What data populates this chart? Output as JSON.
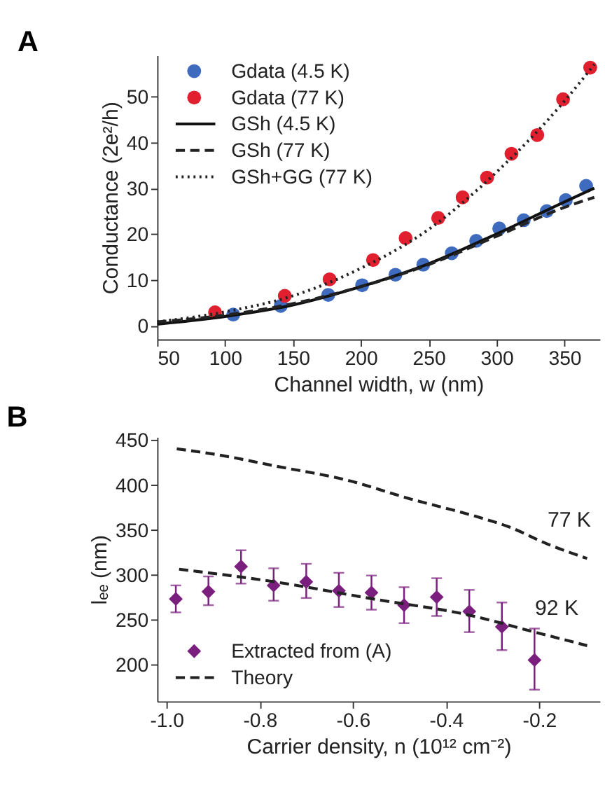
{
  "chart_data": [
    {
      "type": "line",
      "title": "A",
      "xlabel": "Channel width, w (nm)",
      "ylabel": "Conductance (2e²/h)",
      "xlim": [
        50,
        376
      ],
      "ylim": [
        -3,
        59
      ],
      "xticks": [
        50,
        100,
        150,
        200,
        250,
        300,
        350
      ],
      "yticks": [
        0,
        10,
        20,
        30,
        40,
        50
      ],
      "legend": "top left",
      "grid": false,
      "series": [
        {
          "name": "Gdata (4.5 K)",
          "type": "scatter",
          "marker": "circle",
          "color": "#3f6bbf",
          "x": [
            106,
            141,
            176,
            201,
            225.5,
            246,
            267,
            285,
            302,
            320,
            337,
            351,
            366
          ],
          "values": [
            2.4,
            4.3,
            6.7,
            8.8,
            11.1,
            13.3,
            15.8,
            18.5,
            21.2,
            23.0,
            25.0,
            27.4,
            30.5
          ]
        },
        {
          "name": "Gdata (77 K)",
          "type": "scatter",
          "marker": "circle",
          "color": "#e0202f",
          "x": [
            92.6,
            144,
            177,
            209,
            233,
            257,
            275,
            293,
            311,
            330,
            349,
            369
          ],
          "values": [
            2.9,
            6.5,
            10.1,
            14.3,
            19.1,
            23.5,
            28.0,
            32.3,
            37.5,
            41.6,
            49.4,
            56.3
          ]
        },
        {
          "name": "GSh (4.5 K)",
          "line_style": "solid",
          "color": "#111111",
          "x": [
            50,
            100,
            150,
            200,
            250,
            300,
            350,
            372
          ],
          "values": [
            0.3,
            2.0,
            4.5,
            8.5,
            13.5,
            20.0,
            27.0,
            30.0
          ]
        },
        {
          "name": "GSh (77 K)",
          "line_style": "dashed",
          "color": "#222222",
          "x": [
            50,
            100,
            150,
            200,
            250,
            300,
            350,
            372
          ],
          "values": [
            0.8,
            2.3,
            4.8,
            8.5,
            13.3,
            19.5,
            25.8,
            28.0
          ]
        },
        {
          "name": "GSh+GG (77 K)",
          "line_style": "dotted",
          "color": "#222222",
          "x": [
            50,
            100,
            150,
            200,
            250,
            300,
            350,
            372
          ],
          "values": [
            0.8,
            3.0,
            6.5,
            12.5,
            21.0,
            33.5,
            49.0,
            57.0
          ]
        }
      ]
    },
    {
      "type": "line",
      "title": "B",
      "xlabel": "Carrier density, n (10¹² cm⁻²)",
      "ylabel": "lₑₑ (nm)",
      "xlim": [
        -1.02,
        -0.07
      ],
      "ylim": [
        159,
        453
      ],
      "xticks": [
        {
          "value": -1.0,
          "label": "-1.0"
        },
        -0.8,
        -0.6,
        -0.4,
        -0.2
      ],
      "yticks": [
        200,
        250,
        300,
        350,
        400,
        450
      ],
      "legend": "bottom left",
      "grid": false,
      "series": [
        {
          "name": "Extracted from (A)",
          "type": "scatter",
          "marker": "diamond",
          "color": "#7b1f7f",
          "x": [
            -0.98,
            -0.91,
            -0.84,
            -0.77,
            -0.7,
            -0.63,
            -0.56,
            -0.49,
            -0.42,
            -0.35,
            -0.28,
            -0.21
          ],
          "values": [
            273,
            281,
            309,
            288,
            292,
            282,
            280,
            266,
            275,
            259,
            242,
            205
          ],
          "errors": [
            [
              258,
              288
            ],
            [
              266,
              298
            ],
            [
              290,
              327
            ],
            [
              271,
              307
            ],
            [
              274,
              312
            ],
            [
              264,
              302
            ],
            [
              261,
              299
            ],
            [
              246,
              286
            ],
            [
              254,
              296
            ],
            [
              236,
              283
            ],
            [
              216,
              269
            ],
            [
              172,
              240
            ]
          ]
        },
        {
          "name": "Theory",
          "line_style": "dashed",
          "color": "#222222",
          "x": [
            -0.973,
            -0.768,
            -0.557,
            -0.351,
            -0.209,
            -0.097
          ],
          "values": [
            306,
            292,
            273,
            255,
            236,
            221
          ]
        },
        {
          "line_style": "dashed",
          "color": "#222222",
          "x": [
            -0.978,
            -0.886,
            -0.768,
            -0.612,
            -0.475,
            -0.337,
            -0.264,
            -0.182,
            -0.097
          ],
          "values": [
            440,
            433,
            421,
            405,
            384,
            365,
            353,
            334,
            318
          ]
        }
      ],
      "annotations": [
        {
          "text": "77 K",
          "x": -0.182,
          "y": 334
        },
        {
          "text": "92 K",
          "x": -0.209,
          "y": 236
        }
      ]
    }
  ]
}
